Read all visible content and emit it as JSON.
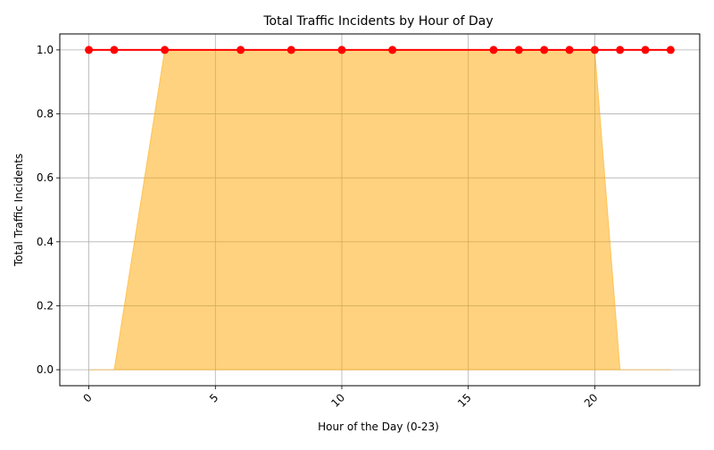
{
  "chart_data": {
    "type": "line",
    "title": "Total Traffic Incidents by Hour of Day",
    "xlabel": "Hour of the Day (0-23)",
    "ylabel": "Total Traffic Incidents",
    "xlim": [
      -1.15,
      24.15
    ],
    "ylim": [
      -0.05,
      1.05
    ],
    "x_ticks": [
      "0",
      "5",
      "10",
      "15",
      "20"
    ],
    "y_ticks": [
      "0.0",
      "0.2",
      "0.4",
      "0.6",
      "0.8",
      "1.0"
    ],
    "grid": true,
    "line_series": {
      "color": "#ff0000",
      "x": [
        0,
        1,
        3,
        6,
        8,
        10,
        12,
        16,
        17,
        18,
        19,
        20,
        21,
        22,
        23
      ],
      "values": [
        1,
        1,
        1,
        1,
        1,
        1,
        1,
        1,
        1,
        1,
        1,
        1,
        1,
        1,
        1
      ]
    },
    "area_series": {
      "color": "#ffa500",
      "x": [
        0,
        1,
        3,
        6,
        20,
        21,
        22,
        23
      ],
      "upper": [
        0,
        0,
        1,
        1,
        1,
        0,
        0,
        0
      ],
      "lower": [
        0,
        0,
        0,
        0,
        0,
        0,
        0,
        0
      ]
    }
  }
}
